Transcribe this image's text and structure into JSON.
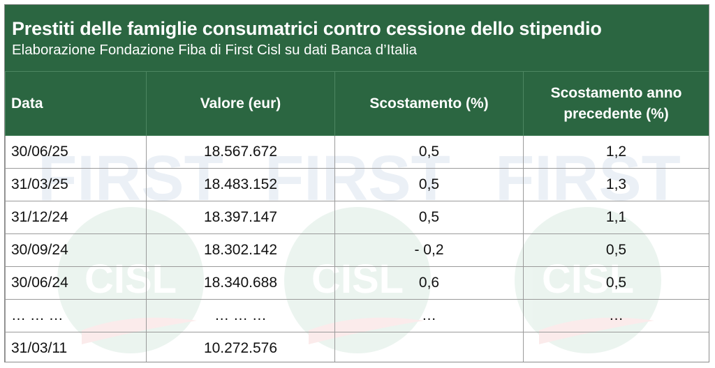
{
  "header": {
    "title": "Prestiti delle famiglie consumatrici contro cessione dello stipendio",
    "subtitle": "Elaborazione Fondazione Fiba di First Cisl su dati Banca d’Italia"
  },
  "watermark": {
    "brand_text": "FIRST",
    "logo_text": "CISL",
    "brand_color": "#2b5fa8",
    "logo_green": "#2e8b57",
    "logo_red": "#d9342b"
  },
  "colors": {
    "header_green": "#2b6641",
    "header_text": "#ffffff",
    "grid": "#9a9a9a"
  },
  "chart_data": {
    "type": "table",
    "title": "Prestiti delle famiglie consumatrici contro cessione dello stipendio",
    "subtitle": "Elaborazione Fondazione Fiba di First Cisl su dati Banca d’Italia",
    "columns": [
      "Data",
      "Valore (eur)",
      "Scostamento (%)",
      "Scostamento anno precedente (%)"
    ],
    "rows": [
      [
        "30/06/25",
        "18.567.672",
        "0,5",
        "1,2"
      ],
      [
        "31/03/25",
        "18.483.152",
        "0,5",
        "1,3"
      ],
      [
        "31/12/24",
        "18.397.147",
        "0,5",
        "1,1"
      ],
      [
        "30/09/24",
        "18.302.142",
        "- 0,2",
        "0,5"
      ],
      [
        "30/06/24",
        "18.340.688",
        "0,6",
        "0,5"
      ],
      [
        "… … …",
        "… … …",
        "…",
        "…"
      ],
      [
        "31/03/11",
        "10.272.576",
        "",
        ""
      ]
    ]
  }
}
